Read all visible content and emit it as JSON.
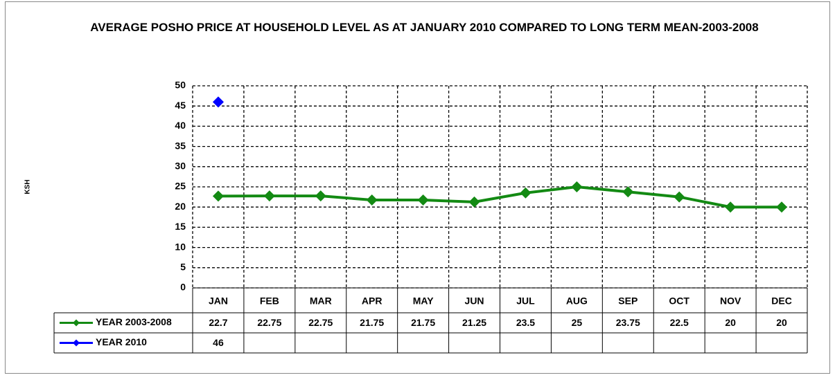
{
  "chart_data": {
    "type": "line",
    "title": "AVERAGE POSHO PRICE AT HOUSEHOLD LEVEL AS AT JANUARY 2010 COMPARED TO LONG TERM MEAN-2003-2008",
    "y_label": "KSH",
    "categories": [
      "JAN",
      "FEB",
      "MAR",
      "APR",
      "MAY",
      "JUN",
      "JUL",
      "AUG",
      "SEP",
      "OCT",
      "NOV",
      "DEC"
    ],
    "series": [
      {
        "name": "YEAR 2003-2008",
        "color": "#138a13",
        "values": [
          22.7,
          22.75,
          22.75,
          21.75,
          21.75,
          21.25,
          23.5,
          25,
          23.75,
          22.5,
          20,
          20
        ]
      },
      {
        "name": "YEAR 2010",
        "color": "#0000ff",
        "values": [
          46,
          null,
          null,
          null,
          null,
          null,
          null,
          null,
          null,
          null,
          null,
          null
        ]
      }
    ],
    "ylim": [
      0,
      50
    ],
    "yticks": [
      0,
      5,
      10,
      15,
      20,
      25,
      30,
      35,
      40,
      45,
      50
    ],
    "grid": true,
    "data_table": true
  }
}
